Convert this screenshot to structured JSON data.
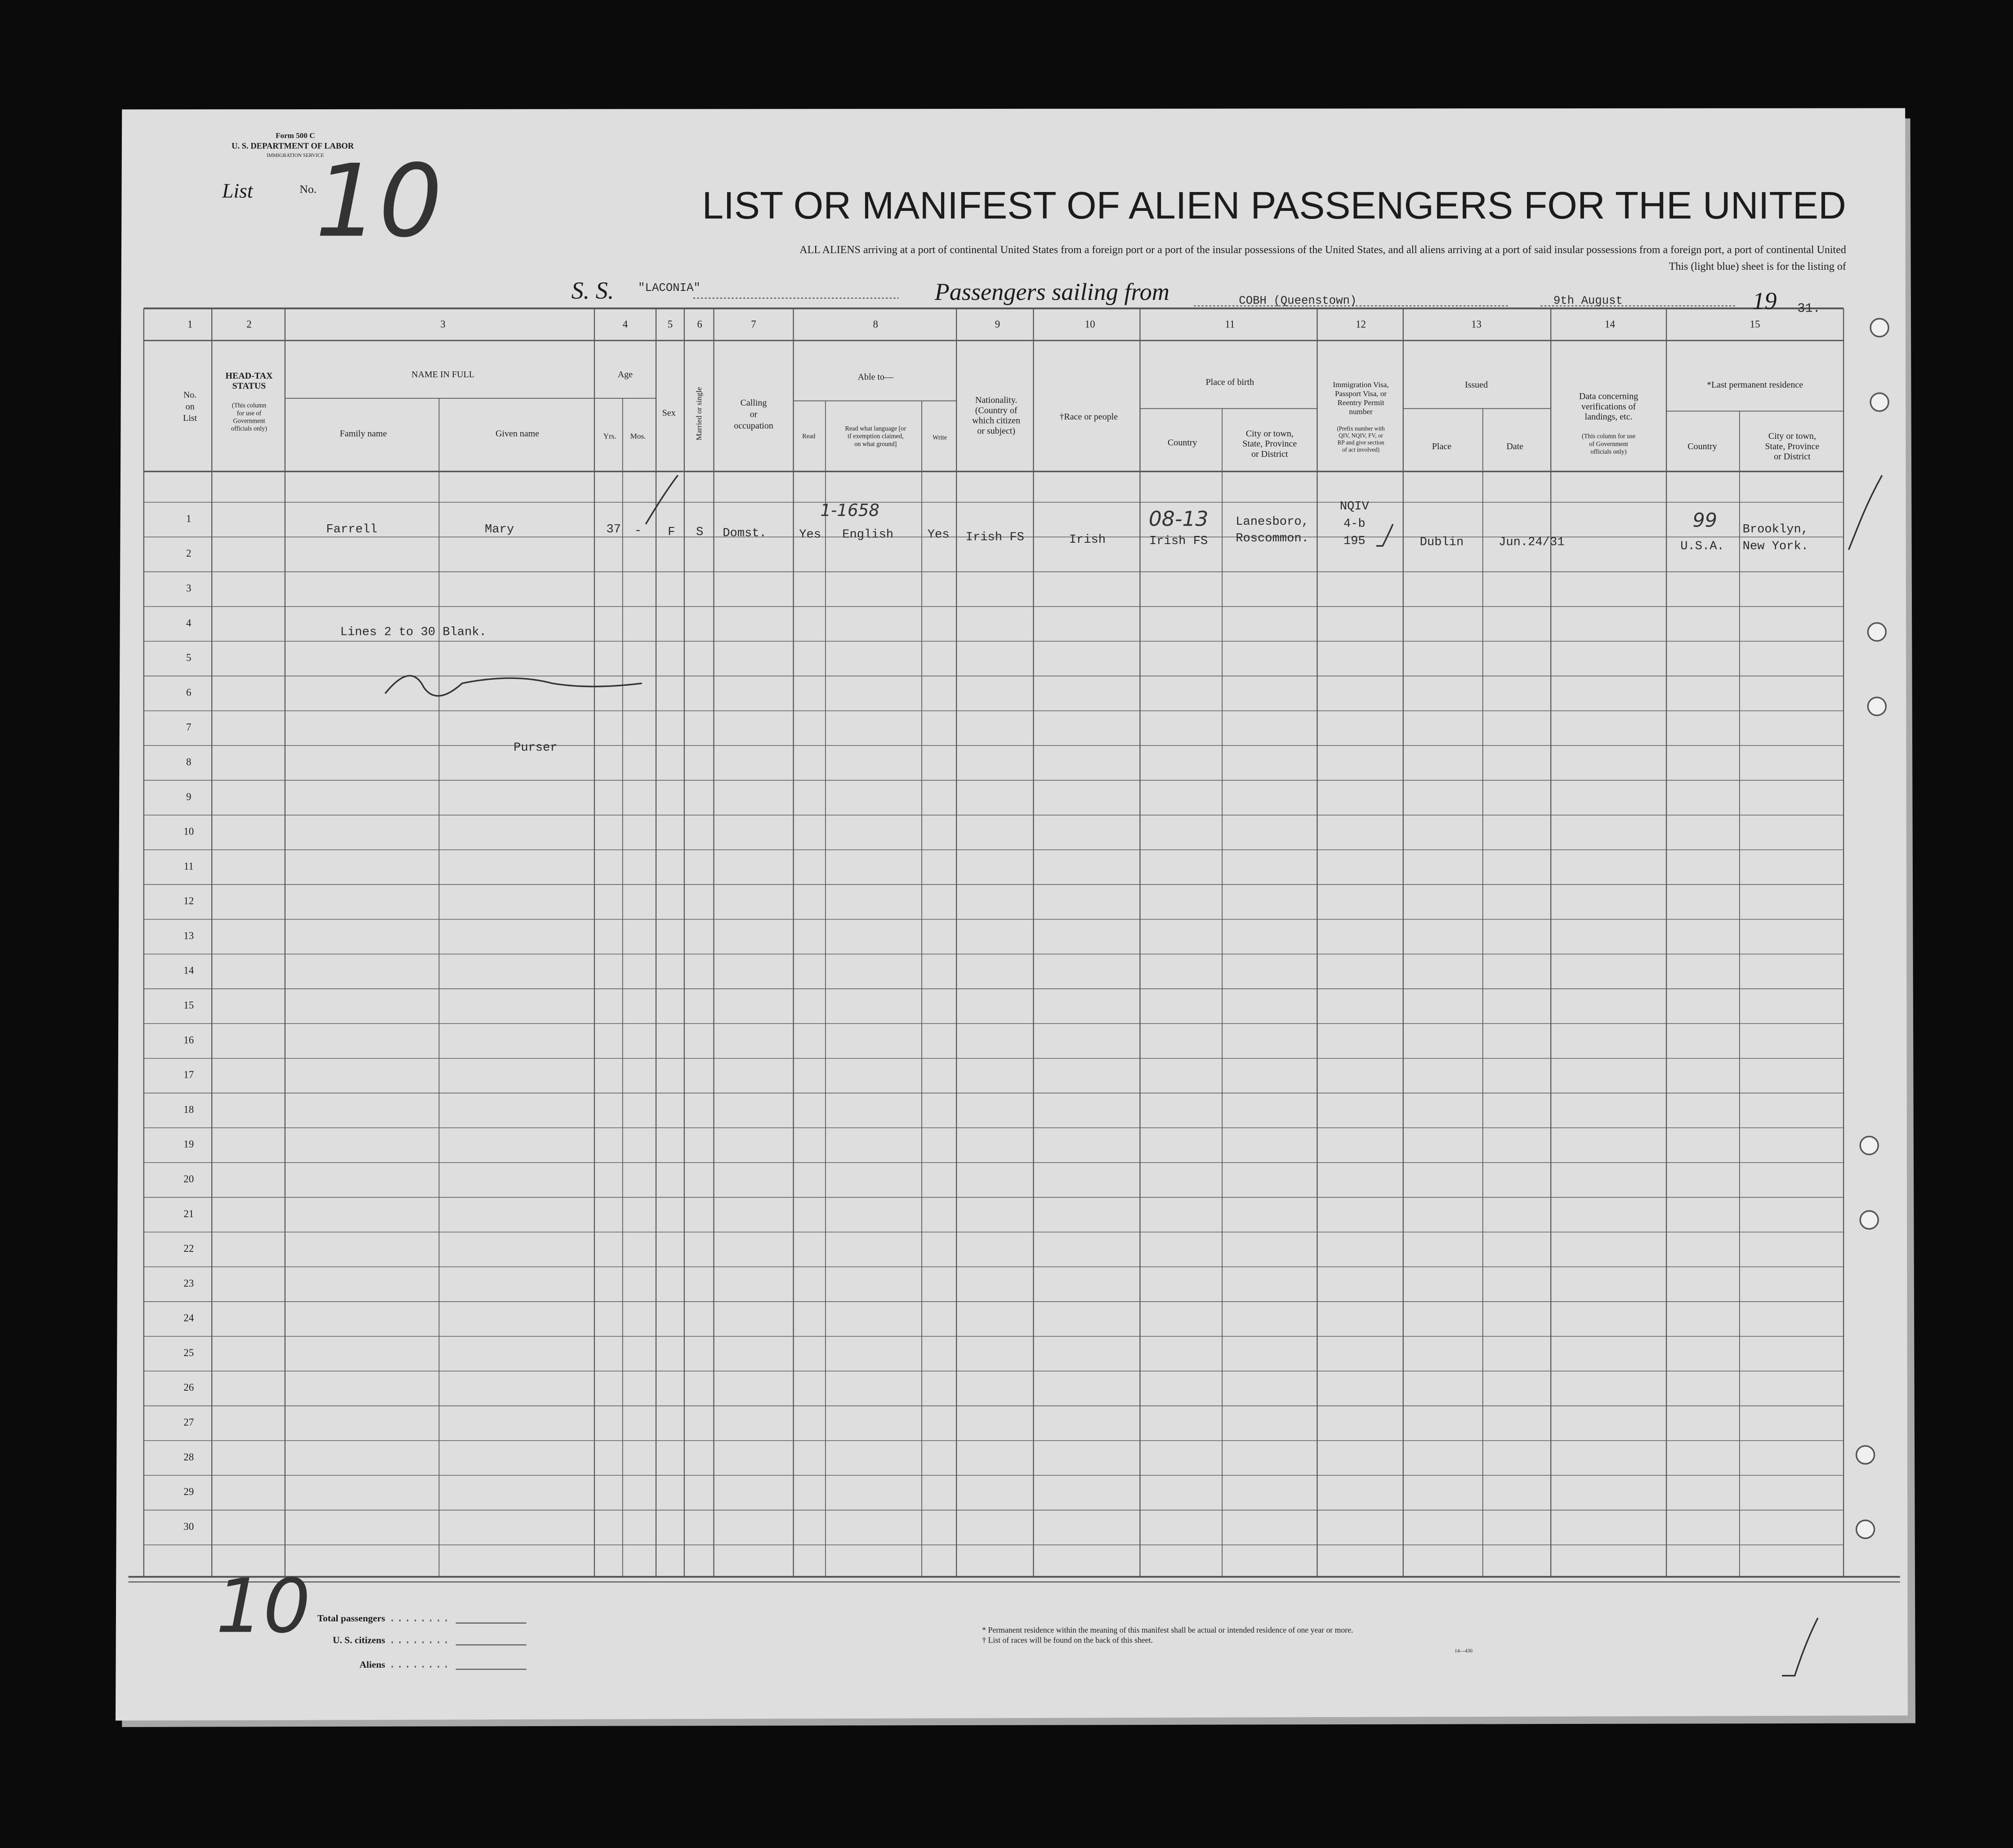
{
  "header": {
    "form": "Form 500 C",
    "department": "U. S. DEPARTMENT OF LABOR",
    "service": "IMMIGRATION SERVICE",
    "list_label": "List",
    "list_no_label": "No.",
    "list_number": "10",
    "title": "LIST OR MANIFEST OF ALIEN PASSENGERS FOR THE UNITED",
    "subtitle_1": "ALL ALIENS arriving at a port of continental United States from a foreign port or a port of the insular possessions of the United States, and all aliens arriving at a port of said insular possessions from a foreign port, a port of continental United",
    "subtitle_2": "This (light blue) sheet is for the listing of",
    "ship_label": "S. S.",
    "ship": "\"LACONIA\"",
    "sailing_label": "Passengers sailing from",
    "port": "COBH (Queenstown)",
    "date": "9th August",
    "year_prefix": "19",
    "year_suffix": "31."
  },
  "table": {
    "column_numbers": [
      "1",
      "2",
      "3",
      "4",
      "5",
      "6",
      "7",
      "8",
      "9",
      "10",
      "11",
      "12",
      "13",
      "14",
      "15"
    ],
    "headers": [
      [
        "No.",
        "on",
        "List"
      ],
      [
        "HEAD-TAX",
        "STATUS"
      ],
      [
        "(This column",
        "for use of",
        "Government",
        "officials only)"
      ],
      [
        "NAME IN FULL"
      ],
      [
        "Family name"
      ],
      [
        "Given name"
      ],
      [
        "Age"
      ],
      [
        "Yrs."
      ],
      [
        "Mos."
      ],
      [
        "Sex"
      ],
      [
        "Married or single"
      ],
      [
        "Calling",
        "or",
        "occupation"
      ],
      [
        "Able to—"
      ],
      [
        "Read"
      ],
      [
        "Read what language [or",
        "if exemption claimed,",
        "on what ground]"
      ],
      [
        "Write"
      ],
      [
        "Nationality.",
        "(Country of",
        "which citizen",
        "or subject)"
      ],
      [
        "†Race or people"
      ],
      [
        "Place of birth"
      ],
      [
        "Country"
      ],
      [
        "City or town,",
        "State, Province",
        "or District"
      ],
      [
        "Immigration Visa,",
        "Passport Visa, or",
        "Reentry Permit",
        "number"
      ],
      [
        "(Prefix number with",
        "QIV, NQIV, FV, or",
        "RP and give section",
        "of act involved)"
      ],
      [
        "Issued"
      ],
      [
        "Place"
      ],
      [
        "Date"
      ],
      [
        "Data concerning",
        "verifications of",
        "landings, etc."
      ],
      [
        "(This column for use",
        "of Government",
        "officials only)"
      ],
      [
        "*Last permanent residence"
      ],
      [
        "Country"
      ],
      [
        "City or town,",
        "State, Province",
        "or District"
      ]
    ],
    "row_numbers": [
      "1",
      "2",
      "3",
      "4",
      "5",
      "6",
      "7",
      "8",
      "9",
      "10",
      "11",
      "12",
      "13",
      "14",
      "15",
      "16",
      "17",
      "18",
      "19",
      "20",
      "21",
      "22",
      "23",
      "24",
      "25",
      "26",
      "27",
      "28",
      "29",
      "30"
    ],
    "rows": [
      {
        "family_name": "Farrell",
        "given_name": "Mary",
        "age_yrs": "37",
        "age_mos": "-",
        "sex": "F",
        "marital": "S",
        "occupation": "Domst.",
        "read": "Yes",
        "language": "English",
        "write": "Yes",
        "nationality": "Irish FS",
        "race": "Irish",
        "birth_country": "Irish FS",
        "birth_city": [
          "Lanesboro,",
          "Roscommon."
        ],
        "visa": [
          "NQIV",
          "4-b",
          "195"
        ],
        "issued_place": "Dublin",
        "issued_date": "Jun.24/31",
        "residence_country": "U.S.A.",
        "residence_city": [
          "Brooklyn,",
          "New York."
        ]
      }
    ]
  },
  "notes": {
    "blank_lines": "Lines 2 to 30 Blank.",
    "signatory_title": "Purser"
  },
  "handwritten": {
    "language_code": "1-1658",
    "birth_code": "08-13",
    "residence_code": "99",
    "footer_number": "10"
  },
  "footer": {
    "total_passengers": "Total passengers",
    "us_citizens": "U. S. citizens",
    "aliens": "Aliens",
    "footnote_1": "* Permanent residence within the meaning of this manifest shall be actual or intended residence of one year or more.",
    "footnote_2": "† List of races will be found on the back of this sheet.",
    "form_code": "14—430"
  }
}
